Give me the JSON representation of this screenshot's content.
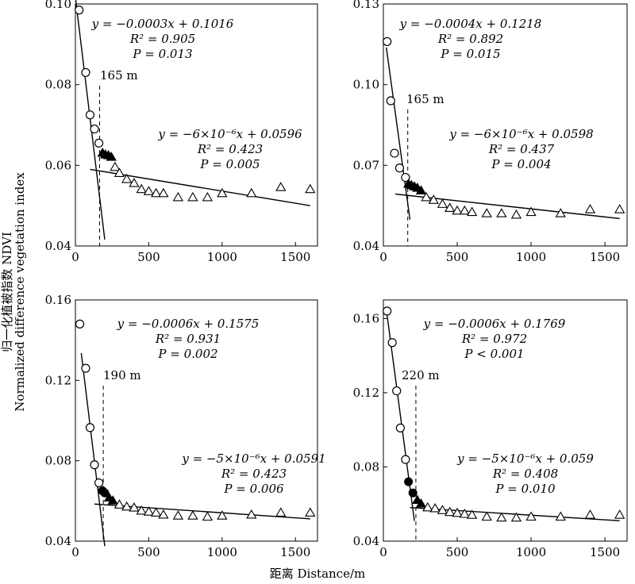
{
  "figure": {
    "xlabel": "距离 Distance/m",
    "ylabel_cn": "归一化植被指数 NDVI",
    "ylabel_en": "Normalized difference vegetation index"
  },
  "chart_data": [
    {
      "type": "scatter",
      "panel": "top-left",
      "xlim": [
        0,
        1650
      ],
      "ylim": [
        0.04,
        0.1
      ],
      "xticks": [
        "0",
        "500",
        "1000",
        "1500"
      ],
      "yticks": [
        "0.04",
        "0.06",
        "0.08",
        "0.10"
      ],
      "grid": false,
      "threshold": {
        "x": 165,
        "label": "165 m"
      },
      "fit1": {
        "slope": -0.0003,
        "intercept": 0.1016,
        "x_range": [
          0,
          200
        ],
        "eq": "y = −0.0003x + 0.1016",
        "r2": "R² = 0.905",
        "p": "P = 0.013"
      },
      "fit2": {
        "slope": -6e-06,
        "intercept": 0.0596,
        "x_range": [
          100,
          1600
        ],
        "eq": "y = −6×10⁻⁶x + 0.0596",
        "r2": "R² = 0.423",
        "p": "P = 0.005"
      },
      "series": [
        {
          "marker": "open-circle",
          "x": [
            25,
            70,
            100,
            130,
            160
          ],
          "y": [
            0.0985,
            0.083,
            0.0725,
            0.069,
            0.0655
          ]
        },
        {
          "marker": "filled-triangle",
          "x": [
            185,
            205,
            225,
            245
          ],
          "y": [
            0.063,
            0.0626,
            0.0624,
            0.062
          ]
        },
        {
          "marker": "open-triangle",
          "x": [
            270,
            300,
            350,
            400,
            450,
            500,
            550,
            600,
            700,
            800,
            900,
            1000,
            1200,
            1400,
            1600
          ],
          "y": [
            0.0595,
            0.058,
            0.0565,
            0.0555,
            0.054,
            0.0535,
            0.053,
            0.053,
            0.052,
            0.052,
            0.052,
            0.053,
            0.053,
            0.0545,
            0.054
          ]
        }
      ]
    },
    {
      "type": "scatter",
      "panel": "top-right",
      "xlim": [
        0,
        1650
      ],
      "ylim": [
        0.04,
        0.13
      ],
      "xticks": [
        "0",
        "500",
        "1000",
        "1500"
      ],
      "yticks": [
        "0.04",
        "0.07",
        "0.10",
        "0.13"
      ],
      "grid": false,
      "threshold": {
        "x": 165,
        "label": "165 m"
      },
      "fit1": {
        "slope": -0.0004,
        "intercept": 0.1218,
        "x_range": [
          20,
          180
        ],
        "eq": "y = −0.0004x + 0.1218",
        "r2": "R² = 0.892",
        "p": "P = 0.015"
      },
      "fit2": {
        "slope": -6e-06,
        "intercept": 0.0598,
        "x_range": [
          80,
          1600
        ],
        "eq": "y = −6×10⁻⁶x + 0.0598",
        "r2": "R² = 0.437",
        "p": "P = 0.004"
      },
      "series": [
        {
          "marker": "open-circle",
          "x": [
            25,
            50,
            75,
            110,
            150
          ],
          "y": [
            0.116,
            0.094,
            0.0745,
            0.069,
            0.0655
          ]
        },
        {
          "marker": "filled-triangle",
          "x": [
            170,
            190,
            210,
            230,
            255
          ],
          "y": [
            0.063,
            0.0625,
            0.062,
            0.0615,
            0.0605
          ]
        },
        {
          "marker": "open-triangle",
          "x": [
            290,
            340,
            400,
            450,
            500,
            550,
            600,
            700,
            800,
            900,
            1000,
            1200,
            1400,
            1600
          ],
          "y": [
            0.058,
            0.057,
            0.0555,
            0.054,
            0.053,
            0.053,
            0.0525,
            0.052,
            0.052,
            0.0515,
            0.0525,
            0.052,
            0.0535,
            0.0535
          ]
        }
      ]
    },
    {
      "type": "scatter",
      "panel": "bottom-left",
      "xlim": [
        0,
        1650
      ],
      "ylim": [
        0.04,
        0.16
      ],
      "xticks": [
        "0",
        "500",
        "1000",
        "1500"
      ],
      "yticks": [
        "0.04",
        "0.08",
        "0.12",
        "0.16"
      ],
      "grid": false,
      "threshold": {
        "x": 190,
        "label": "190 m"
      },
      "fit1": {
        "slope": -0.0006,
        "intercept": 0.1575,
        "x_range": [
          40,
          200
        ],
        "eq": "y = −0.0006x + 0.1575",
        "r2": "R² = 0.931",
        "p": "P = 0.002"
      },
      "fit2": {
        "slope": -5e-06,
        "intercept": 0.0591,
        "x_range": [
          130,
          1600
        ],
        "eq": "y = −5×10⁻⁶x + 0.0591",
        "r2": "R² = 0.423",
        "p": "P = 0.006"
      },
      "series": [
        {
          "marker": "open-circle",
          "x": [
            30,
            70,
            100,
            130,
            160
          ],
          "y": [
            0.148,
            0.126,
            0.0965,
            0.078,
            0.069
          ]
        },
        {
          "marker": "filled-circle",
          "x": [
            185,
            200
          ],
          "y": [
            0.065,
            0.064
          ]
        },
        {
          "marker": "filled-triangle",
          "x": [
            230,
            255
          ],
          "y": [
            0.0615,
            0.06
          ]
        },
        {
          "marker": "open-triangle",
          "x": [
            300,
            350,
            400,
            450,
            500,
            550,
            600,
            700,
            800,
            900,
            1000,
            1200,
            1400,
            1600
          ],
          "y": [
            0.058,
            0.057,
            0.0565,
            0.055,
            0.0545,
            0.054,
            0.053,
            0.0525,
            0.0525,
            0.052,
            0.0525,
            0.053,
            0.054,
            0.054
          ]
        }
      ]
    },
    {
      "type": "scatter",
      "panel": "bottom-right",
      "xlim": [
        0,
        1650
      ],
      "ylim": [
        0.04,
        0.17
      ],
      "xticks": [
        "0",
        "500",
        "1000",
        "1500"
      ],
      "yticks": [
        "0.04",
        "0.08",
        "0.12",
        "0.16"
      ],
      "grid": false,
      "threshold": {
        "x": 220,
        "label": "220 m"
      },
      "fit1": {
        "slope": -0.0006,
        "intercept": 0.1769,
        "x_range": [
          20,
          210
        ],
        "eq": "y = −0.0006x + 0.1769",
        "r2": "R² = 0.972",
        "p": "P < 0.001"
      },
      "fit2": {
        "slope": -5e-06,
        "intercept": 0.059,
        "x_range": [
          180,
          1600
        ],
        "eq": "y = −5×10⁻⁶x  + 0.059",
        "r2": "R² = 0.408",
        "p": "P = 0.010"
      },
      "series": [
        {
          "marker": "open-circle",
          "x": [
            25,
            60,
            90,
            115,
            150
          ],
          "y": [
            0.164,
            0.147,
            0.121,
            0.101,
            0.084
          ]
        },
        {
          "marker": "filled-circle",
          "x": [
            170,
            200
          ],
          "y": [
            0.072,
            0.066
          ]
        },
        {
          "marker": "filled-triangle",
          "x": [
            230,
            255
          ],
          "y": [
            0.062,
            0.06
          ]
        },
        {
          "marker": "open-triangle",
          "x": [
            300,
            350,
            400,
            450,
            500,
            550,
            600,
            700,
            800,
            900,
            1000,
            1200,
            1400,
            1600
          ],
          "y": [
            0.058,
            0.0575,
            0.0565,
            0.0555,
            0.055,
            0.0545,
            0.054,
            0.053,
            0.0525,
            0.0525,
            0.053,
            0.053,
            0.054,
            0.054
          ]
        }
      ]
    }
  ]
}
